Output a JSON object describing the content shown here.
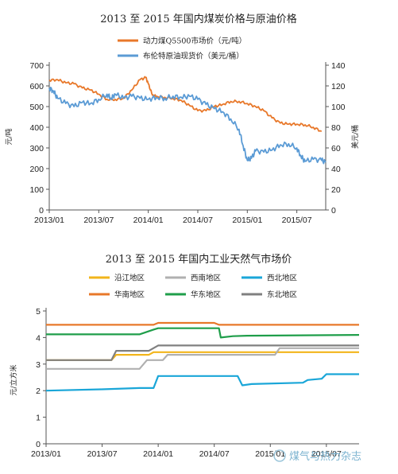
{
  "chart_data": [
    {
      "type": "line",
      "title": "2013 至 2015 年国内煤炭价格与原油价格",
      "ylabel": "元/吨",
      "y2label": "美元/桶",
      "ylim": [
        0,
        700
      ],
      "y2lim": [
        0,
        140
      ],
      "yticks": [
        0,
        100,
        200,
        300,
        400,
        500,
        600,
        700
      ],
      "y2ticks": [
        0,
        20,
        40,
        60,
        80,
        100,
        120,
        140
      ],
      "xlim": [
        0,
        33.5
      ],
      "xticks": [
        {
          "t": 0,
          "label": "2013/01"
        },
        {
          "t": 6,
          "label": "2013/07"
        },
        {
          "t": 12,
          "label": "2014/01"
        },
        {
          "t": 18,
          "label": "2014/07"
        },
        {
          "t": 24,
          "label": "2015/01"
        },
        {
          "t": 30,
          "label": "2015/07"
        }
      ],
      "legend_position": "top-center",
      "series": [
        {
          "name": "动力煤Q5500市场价（元/吨）",
          "axis": "left",
          "color": "#e8782a",
          "points": [
            [
              0,
              628
            ],
            [
              1,
              630
            ],
            [
              2,
              615
            ],
            [
              3,
              610
            ],
            [
              4,
              590
            ],
            [
              5,
              580
            ],
            [
              6,
              560
            ],
            [
              7,
              535
            ],
            [
              8,
              535
            ],
            [
              9,
              540
            ],
            [
              10,
              580
            ],
            [
              11,
              630
            ],
            [
              11.7,
              640
            ],
            [
              12,
              610
            ],
            [
              12.5,
              555
            ],
            [
              13,
              550
            ],
            [
              14,
              545
            ],
            [
              15,
              540
            ],
            [
              16,
              530
            ],
            [
              17,
              505
            ],
            [
              18,
              480
            ],
            [
              19,
              480
            ],
            [
              20,
              500
            ],
            [
              21,
              510
            ],
            [
              22,
              525
            ],
            [
              23,
              525
            ],
            [
              24,
              515
            ],
            [
              25,
              500
            ],
            [
              26,
              480
            ],
            [
              27,
              445
            ],
            [
              28,
              420
            ],
            [
              29,
              415
            ],
            [
              30,
              415
            ],
            [
              31,
              412
            ],
            [
              32,
              400
            ],
            [
              33,
              380
            ]
          ]
        },
        {
          "name": "布伦特原油现货价（美元/桶）",
          "axis": "right",
          "color": "#5b9bd5",
          "points": [
            [
              0,
              118
            ],
            [
              0.5,
              115
            ],
            [
              1,
              108
            ],
            [
              2,
              103
            ],
            [
              3,
              100
            ],
            [
              4,
              104
            ],
            [
              5,
              103
            ],
            [
              6,
              107
            ],
            [
              7,
              112
            ],
            [
              7.5,
              108
            ],
            [
              8,
              112
            ],
            [
              9,
              108
            ],
            [
              10,
              110
            ],
            [
              11,
              108
            ],
            [
              12,
              107
            ],
            [
              13,
              109
            ],
            [
              14,
              108
            ],
            [
              15,
              110
            ],
            [
              16,
              109
            ],
            [
              17,
              110
            ],
            [
              18,
              107
            ],
            [
              19,
              102
            ],
            [
              20,
              98
            ],
            [
              21,
              95
            ],
            [
              22,
              88
            ],
            [
              23,
              78
            ],
            [
              23.5,
              62
            ],
            [
              24,
              48
            ],
            [
              24.5,
              50
            ],
            [
              25,
              57
            ],
            [
              26,
              56
            ],
            [
              27,
              58
            ],
            [
              28,
              63
            ],
            [
              29,
              64
            ],
            [
              30,
              60
            ],
            [
              30.5,
              52
            ],
            [
              31,
              47
            ],
            [
              32,
              49
            ],
            [
              33,
              48
            ],
            [
              33.5,
              46
            ]
          ]
        }
      ]
    },
    {
      "type": "line",
      "title": "2013 至 2015 年国内工业天然气市场价",
      "ylabel": "元/立方米",
      "ylim": [
        0,
        5
      ],
      "yticks": [
        0,
        1,
        2,
        3,
        4,
        5
      ],
      "xlim": [
        0,
        33.5
      ],
      "xticks": [
        {
          "t": 0,
          "label": "2013/01"
        },
        {
          "t": 6,
          "label": "2013/07"
        },
        {
          "t": 12,
          "label": "2014/01"
        },
        {
          "t": 18,
          "label": "2014/07"
        },
        {
          "t": 24,
          "label": "2015/01"
        },
        {
          "t": 30,
          "label": "2015/07"
        }
      ],
      "legend_position": "top-center",
      "series": [
        {
          "name": "沿江地区",
          "color": "#f2b51b",
          "points": [
            [
              0,
              3.15
            ],
            [
              7,
              3.15
            ],
            [
              7.5,
              3.35
            ],
            [
              11,
              3.35
            ],
            [
              11.5,
              3.45
            ],
            [
              20,
              3.45
            ],
            [
              20.5,
              3.45
            ],
            [
              33.5,
              3.45
            ]
          ]
        },
        {
          "name": "西南地区",
          "color": "#b0b0b0",
          "points": [
            [
              0,
              2.82
            ],
            [
              10,
              2.82
            ],
            [
              10.8,
              3.15
            ],
            [
              12.5,
              3.15
            ],
            [
              13,
              3.35
            ],
            [
              24.5,
              3.35
            ],
            [
              25,
              3.6
            ],
            [
              33.5,
              3.6
            ]
          ]
        },
        {
          "name": "西北地区",
          "color": "#1aa6d8",
          "points": [
            [
              0,
              2.0
            ],
            [
              6,
              2.05
            ],
            [
              10,
              2.1
            ],
            [
              11.5,
              2.1
            ],
            [
              12,
              2.55
            ],
            [
              20.5,
              2.55
            ],
            [
              21,
              2.2
            ],
            [
              22,
              2.25
            ],
            [
              27.5,
              2.3
            ],
            [
              28,
              2.4
            ],
            [
              29.5,
              2.45
            ],
            [
              30,
              2.62
            ],
            [
              33.5,
              2.62
            ]
          ]
        },
        {
          "name": "华南地区",
          "color": "#e8782a",
          "points": [
            [
              0,
              4.48
            ],
            [
              11.5,
              4.48
            ],
            [
              12,
              4.55
            ],
            [
              18,
              4.55
            ],
            [
              18.5,
              4.48
            ],
            [
              33.5,
              4.48
            ]
          ]
        },
        {
          "name": "华东地区",
          "color": "#1f9e4a",
          "points": [
            [
              0,
              4.12
            ],
            [
              10,
              4.12
            ],
            [
              11.5,
              4.3
            ],
            [
              12,
              4.35
            ],
            [
              18.5,
              4.35
            ],
            [
              18.7,
              4.0
            ],
            [
              20,
              4.05
            ],
            [
              21.5,
              4.07
            ],
            [
              33.5,
              4.1
            ]
          ]
        },
        {
          "name": "东北地区",
          "color": "#808080",
          "points": [
            [
              0,
              3.15
            ],
            [
              7,
              3.15
            ],
            [
              7.5,
              3.5
            ],
            [
              11,
              3.5
            ],
            [
              12,
              3.7
            ],
            [
              33.5,
              3.7
            ]
          ]
        }
      ]
    }
  ],
  "watermark": "煤气与热力杂志"
}
